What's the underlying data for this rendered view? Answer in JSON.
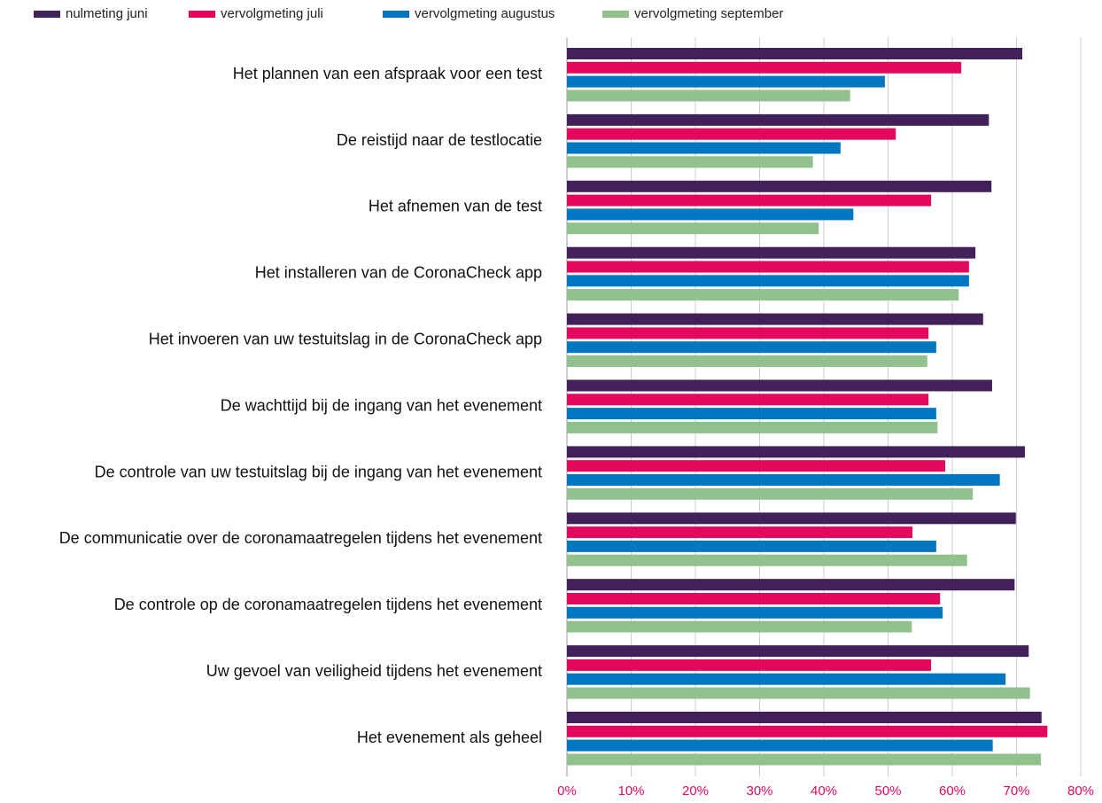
{
  "chart_data": {
    "type": "barh",
    "categories": [
      "Het plannen van een afspraak voor een test",
      "De reistijd naar de testlocatie",
      "Het afnemen van de test",
      "Het installeren van de CoronaCheck app",
      "Het invoeren van uw testuitslag in de CoronaCheck app",
      "De wachttijd bij de ingang van het evenement",
      "De controle van uw testuitslag bij de ingang van het evenement",
      "De communicatie over de coronamaatregelen tijdens het evenement",
      "De controle op de coronamaatregelen tijdens het evenement",
      "Uw gevoel van veiligheid tijdens het evenement",
      "Het evenement als geheel"
    ],
    "series": [
      {
        "name": "nulmeting juni",
        "color": "#42215a",
        "values": [
          70.9,
          65.7,
          66.1,
          63.6,
          64.8,
          66.2,
          71.3,
          69.9,
          69.7,
          71.9,
          73.9
        ]
      },
      {
        "name": "vervolgmeting juli",
        "color": "#e3075d",
        "values": [
          61.4,
          51.2,
          56.7,
          62.6,
          56.3,
          56.3,
          58.9,
          53.8,
          58.1,
          56.7,
          74.8
        ]
      },
      {
        "name": "vervolgmeting augustus",
        "color": "#0077c0",
        "values": [
          49.5,
          42.6,
          44.6,
          62.6,
          57.5,
          57.5,
          67.4,
          57.5,
          58.5,
          68.3,
          66.3
        ]
      },
      {
        "name": "vervolgmeting september",
        "color": "#93c18e",
        "values": [
          44.1,
          38.3,
          39.2,
          61.0,
          56.1,
          57.7,
          63.2,
          62.3,
          53.7,
          72.1,
          73.8
        ]
      }
    ],
    "xlim": [
      0,
      80
    ],
    "xticks": [
      {
        "value": 0,
        "label": "0%"
      },
      {
        "value": 10,
        "label": "10%"
      },
      {
        "value": 20,
        "label": "20%"
      },
      {
        "value": 30,
        "label": "30%"
      },
      {
        "value": 40,
        "label": "40%"
      },
      {
        "value": 50,
        "label": "50%"
      },
      {
        "value": 60,
        "label": "60%"
      },
      {
        "value": 70,
        "label": "70%"
      },
      {
        "value": 80,
        "label": "80%"
      }
    ],
    "grid": true,
    "legend": "top"
  }
}
